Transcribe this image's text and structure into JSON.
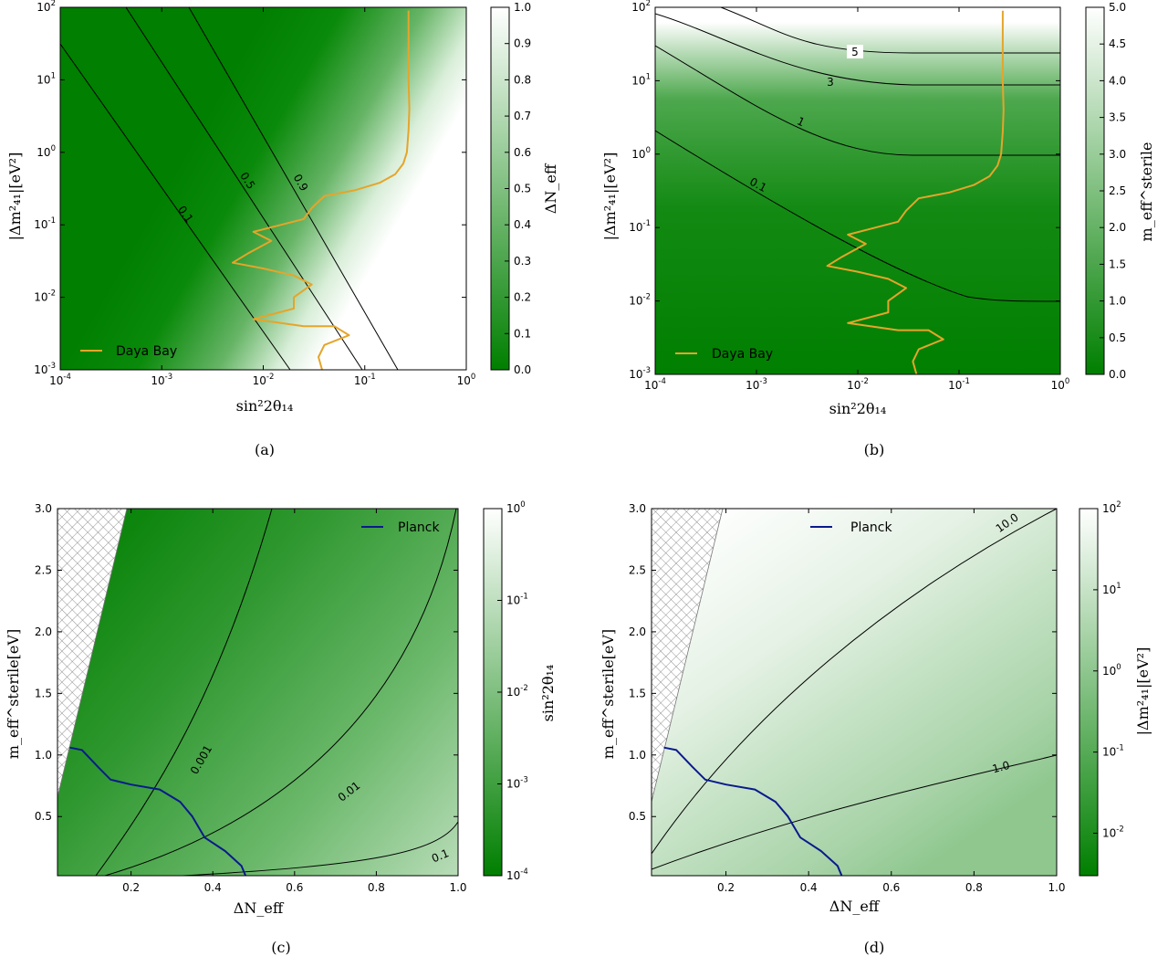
{
  "colors": {
    "green": "#007f00",
    "white": "#ffffff",
    "daya_bay": "#e5a52a",
    "planck": "#0a1a8c",
    "contour": "#000000"
  },
  "chart_data": [
    {
      "id": "a",
      "type": "heatmap",
      "caption": "(a)",
      "xlabel": "sin²2θ₁₄",
      "ylabel": "|Δm²₄₁|[eV²]",
      "xscale": "log",
      "yscale": "log",
      "xlim": [
        0.0001,
        1
      ],
      "ylim": [
        0.001,
        100
      ],
      "x_ticks": [
        {
          "b": "10",
          "e": "-4"
        },
        {
          "b": "10",
          "e": "-3"
        },
        {
          "b": "10",
          "e": "-2"
        },
        {
          "b": "10",
          "e": "-1"
        },
        {
          "b": "10",
          "e": "0"
        }
      ],
      "y_ticks": [
        {
          "b": "10",
          "e": "-3"
        },
        {
          "b": "10",
          "e": "-2"
        },
        {
          "b": "10",
          "e": "-1"
        },
        {
          "b": "10",
          "e": "0"
        },
        {
          "b": "10",
          "e": "1"
        },
        {
          "b": "10",
          "e": "2"
        }
      ],
      "colorbar": {
        "label": "ΔN_eff",
        "range": [
          0,
          1
        ],
        "ticks": [
          "0.0",
          "0.1",
          "0.2",
          "0.3",
          "0.4",
          "0.5",
          "0.6",
          "0.7",
          "0.8",
          "0.9",
          "1.0"
        ]
      },
      "contour_labels": [
        "0.1",
        "0.5",
        "0.9"
      ],
      "legend": {
        "entries": [
          "Daya Bay"
        ],
        "location": "lower-left"
      },
      "series": [
        {
          "name": "Daya Bay",
          "points": [
            [
              0.27,
              90
            ],
            [
              0.27,
              30
            ],
            [
              0.27,
              10
            ],
            [
              0.275,
              4
            ],
            [
              0.27,
              2
            ],
            [
              0.26,
              1.0
            ],
            [
              0.24,
              0.7
            ],
            [
              0.2,
              0.5
            ],
            [
              0.14,
              0.38
            ],
            [
              0.08,
              0.3
            ],
            [
              0.04,
              0.25
            ],
            [
              0.03,
              0.17
            ],
            [
              0.025,
              0.12
            ],
            [
              0.015,
              0.1
            ],
            [
              0.008,
              0.08
            ],
            [
              0.012,
              0.06
            ],
            [
              0.007,
              0.04
            ],
            [
              0.005,
              0.03
            ],
            [
              0.01,
              0.025
            ],
            [
              0.02,
              0.02
            ],
            [
              0.03,
              0.015
            ],
            [
              0.02,
              0.01
            ],
            [
              0.02,
              0.007
            ],
            [
              0.008,
              0.005
            ],
            [
              0.025,
              0.004
            ],
            [
              0.05,
              0.004
            ],
            [
              0.07,
              0.003
            ],
            [
              0.04,
              0.0022
            ],
            [
              0.035,
              0.0015
            ],
            [
              0.038,
              0.001
            ]
          ]
        }
      ]
    },
    {
      "id": "b",
      "type": "heatmap",
      "caption": "(b)",
      "xlabel": "sin²2θ₁₄",
      "ylabel": "|Δm²₄₁|[eV²]",
      "xscale": "log",
      "yscale": "log",
      "xlim": [
        0.0001,
        1
      ],
      "ylim": [
        0.001,
        100
      ],
      "x_ticks": [
        {
          "b": "10",
          "e": "-4"
        },
        {
          "b": "10",
          "e": "-3"
        },
        {
          "b": "10",
          "e": "-2"
        },
        {
          "b": "10",
          "e": "-1"
        },
        {
          "b": "10",
          "e": "0"
        }
      ],
      "y_ticks": [
        {
          "b": "10",
          "e": "-3"
        },
        {
          "b": "10",
          "e": "-2"
        },
        {
          "b": "10",
          "e": "-1"
        },
        {
          "b": "10",
          "e": "0"
        },
        {
          "b": "10",
          "e": "1"
        },
        {
          "b": "10",
          "e": "2"
        }
      ],
      "colorbar": {
        "label": "m_eff^sterile",
        "range": [
          0,
          5
        ],
        "ticks": [
          "0.0",
          "0.5",
          "1.0",
          "1.5",
          "2.0",
          "2.5",
          "3.0",
          "3.5",
          "4.0",
          "4.5",
          "5.0"
        ]
      },
      "contour_labels": [
        "0.1",
        "1",
        "3",
        "5"
      ],
      "legend": {
        "entries": [
          "Daya Bay"
        ],
        "location": "lower-left"
      },
      "series": [
        {
          "name": "Daya Bay",
          "points": [
            [
              0.27,
              90
            ],
            [
              0.27,
              30
            ],
            [
              0.27,
              10
            ],
            [
              0.275,
              4
            ],
            [
              0.27,
              2
            ],
            [
              0.26,
              1.0
            ],
            [
              0.24,
              0.7
            ],
            [
              0.2,
              0.5
            ],
            [
              0.14,
              0.38
            ],
            [
              0.08,
              0.3
            ],
            [
              0.04,
              0.25
            ],
            [
              0.03,
              0.17
            ],
            [
              0.025,
              0.12
            ],
            [
              0.015,
              0.1
            ],
            [
              0.008,
              0.08
            ],
            [
              0.012,
              0.06
            ],
            [
              0.007,
              0.04
            ],
            [
              0.005,
              0.03
            ],
            [
              0.01,
              0.025
            ],
            [
              0.02,
              0.02
            ],
            [
              0.03,
              0.015
            ],
            [
              0.02,
              0.01
            ],
            [
              0.02,
              0.007
            ],
            [
              0.008,
              0.005
            ],
            [
              0.025,
              0.004
            ],
            [
              0.05,
              0.004
            ],
            [
              0.07,
              0.003
            ],
            [
              0.04,
              0.0022
            ],
            [
              0.035,
              0.0015
            ],
            [
              0.038,
              0.001
            ]
          ]
        }
      ]
    },
    {
      "id": "c",
      "type": "heatmap",
      "caption": "(c)",
      "xlabel": "ΔN_eff",
      "ylabel": "m_eff^sterile[eV]",
      "xscale": "linear",
      "yscale": "linear",
      "xlim": [
        0.02,
        1.0
      ],
      "ylim": [
        0.02,
        3.0
      ],
      "x_ticks": [
        "0.2",
        "0.4",
        "0.6",
        "0.8",
        "1.0"
      ],
      "y_ticks": [
        "0.5",
        "1.0",
        "1.5",
        "2.0",
        "2.5",
        "3.0"
      ],
      "colorbar": {
        "label": "sin²2θ₁₄",
        "scale": "log",
        "range": [
          0.0001,
          1
        ],
        "ticks": [
          {
            "b": "10",
            "e": "-4"
          },
          {
            "b": "10",
            "e": "-3"
          },
          {
            "b": "10",
            "e": "-2"
          },
          {
            "b": "10",
            "e": "-1"
          },
          {
            "b": "10",
            "e": "0"
          }
        ]
      },
      "contour_labels": [
        "0.001",
        "0.01",
        "0.1"
      ],
      "legend": {
        "entries": [
          "Planck"
        ],
        "location": "top-right"
      },
      "series": [
        {
          "name": "Planck",
          "points": [
            [
              0.05,
              1.06
            ],
            [
              0.08,
              1.04
            ],
            [
              0.12,
              0.9
            ],
            [
              0.15,
              0.8
            ],
            [
              0.2,
              0.76
            ],
            [
              0.27,
              0.72
            ],
            [
              0.32,
              0.62
            ],
            [
              0.35,
              0.5
            ],
            [
              0.38,
              0.33
            ],
            [
              0.43,
              0.22
            ],
            [
              0.47,
              0.1
            ],
            [
              0.48,
              0.02
            ]
          ]
        }
      ]
    },
    {
      "id": "d",
      "type": "heatmap",
      "caption": "(d)",
      "xlabel": "ΔN_eff",
      "ylabel": "m_eff^sterile[eV]",
      "xscale": "linear",
      "yscale": "linear",
      "xlim": [
        0.02,
        1.0
      ],
      "ylim": [
        0.02,
        3.0
      ],
      "x_ticks": [
        "0.2",
        "0.4",
        "0.6",
        "0.8",
        "1.0"
      ],
      "y_ticks": [
        "0.5",
        "1.0",
        "1.5",
        "2.0",
        "2.5",
        "3.0"
      ],
      "colorbar": {
        "label": "|Δm²₄₁|[eV²]",
        "scale": "log",
        "range": [
          0.003,
          100
        ],
        "ticks": [
          {
            "b": "10",
            "e": "-2"
          },
          {
            "b": "10",
            "e": "-1"
          },
          {
            "b": "10",
            "e": "0"
          },
          {
            "b": "10",
            "e": "1"
          },
          {
            "b": "10",
            "e": "2"
          }
        ]
      },
      "contour_labels": [
        "1.0",
        "10.0"
      ],
      "legend": {
        "entries": [
          "Planck"
        ],
        "location": "top-right"
      },
      "series": [
        {
          "name": "Planck",
          "points": [
            [
              0.05,
              1.06
            ],
            [
              0.08,
              1.04
            ],
            [
              0.12,
              0.9
            ],
            [
              0.15,
              0.8
            ],
            [
              0.2,
              0.76
            ],
            [
              0.27,
              0.72
            ],
            [
              0.32,
              0.62
            ],
            [
              0.35,
              0.5
            ],
            [
              0.38,
              0.33
            ],
            [
              0.43,
              0.22
            ],
            [
              0.47,
              0.1
            ],
            [
              0.48,
              0.02
            ]
          ]
        }
      ]
    }
  ]
}
